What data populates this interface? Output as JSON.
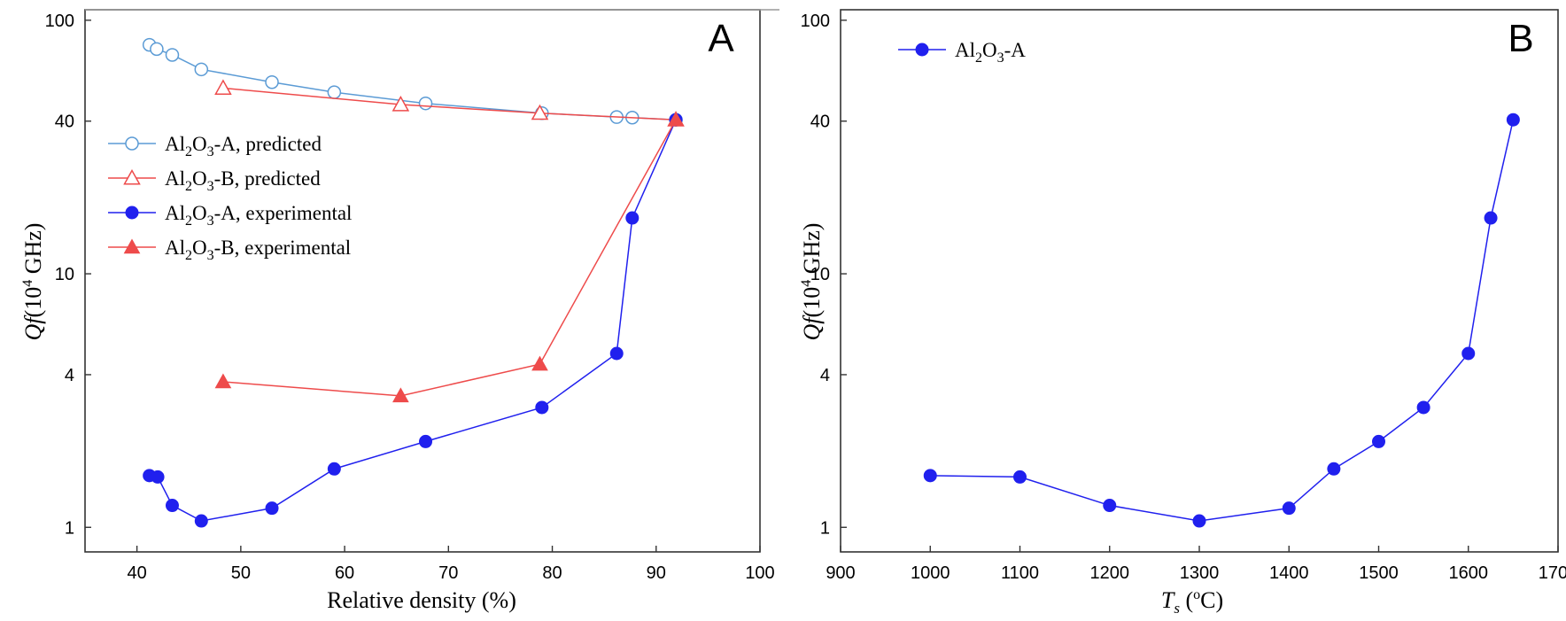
{
  "chart_data": [
    {
      "type": "line",
      "panel_label": "A",
      "xlabel": "Relative density (%)",
      "ylabel_main": "Qf",
      "ylabel_unit": "(10",
      "ylabel_exp": "4",
      "ylabel_tail": " GHz)",
      "y_scale": "log",
      "xlim": [
        35,
        100
      ],
      "ylim": [
        0.8,
        110
      ],
      "x_ticks": [
        "40",
        "50",
        "60",
        "70",
        "80",
        "90",
        "100"
      ],
      "y_ticks": [
        "1",
        "4",
        "10",
        "40",
        "100"
      ],
      "legend_position": "left",
      "series": [
        {
          "name": "Al2O3-A, predicted",
          "label_parts": [
            "Al",
            "2",
            "O",
            "3",
            "-A, predicted"
          ],
          "color": "#5b9bd5",
          "marker": "circle-open",
          "x": [
            41.2,
            41.9,
            43.4,
            46.2,
            53.0,
            59.0,
            67.8,
            79.0,
            86.2,
            87.7,
            91.9
          ],
          "y": [
            80,
            77,
            73,
            64,
            57,
            52,
            47,
            43,
            41.5,
            41.3,
            40.5
          ]
        },
        {
          "name": "Al2O3-B, predicted",
          "label_parts": [
            "Al",
            "2",
            "O",
            "3",
            "-B, predicted"
          ],
          "color": "#ee4b4b",
          "marker": "triangle-open",
          "x": [
            48.3,
            65.4,
            78.8,
            91.9
          ],
          "y": [
            54,
            46.5,
            43,
            40.5
          ]
        },
        {
          "name": "Al2O3-A, experimental",
          "label_parts": [
            "Al",
            "2",
            "O",
            "3",
            "-A, experimental"
          ],
          "color": "#2020ee",
          "marker": "circle-filled",
          "x": [
            41.2,
            42.0,
            43.4,
            46.2,
            53.0,
            59.0,
            67.8,
            79.0,
            86.2,
            87.7,
            91.9
          ],
          "y": [
            1.6,
            1.58,
            1.22,
            1.06,
            1.19,
            1.7,
            2.18,
            2.97,
            4.85,
            16.6,
            40.5
          ]
        },
        {
          "name": "Al2O3-B, experimental",
          "label_parts": [
            "Al",
            "2",
            "O",
            "3",
            "-B, experimental"
          ],
          "color": "#ee4b4b",
          "marker": "triangle-filled",
          "x": [
            48.3,
            65.4,
            78.8,
            91.9
          ],
          "y": [
            3.75,
            3.3,
            4.4,
            40.5
          ]
        }
      ]
    },
    {
      "type": "line",
      "panel_label": "B",
      "xlabel_main": "T",
      "xlabel_sub": "s",
      "xlabel_unit": " (",
      "xlabel_sup": "o",
      "xlabel_tail": "C)",
      "ylabel_main": "Qf",
      "ylabel_unit": "(10",
      "ylabel_exp": "4",
      "ylabel_tail": " GHz)",
      "y_scale": "log",
      "xlim": [
        900,
        1700
      ],
      "ylim": [
        0.8,
        110
      ],
      "x_ticks": [
        "900",
        "1000",
        "1100",
        "1200",
        "1300",
        "1400",
        "1500",
        "1600",
        "1700"
      ],
      "y_ticks": [
        "1",
        "4",
        "10",
        "40",
        "100"
      ],
      "legend_position": "top-left",
      "series": [
        {
          "name": "Al2O3-A",
          "label_parts": [
            "Al",
            "2",
            "O",
            "3",
            "-A"
          ],
          "color": "#2020ee",
          "marker": "circle-filled",
          "x": [
            1000,
            1100,
            1200,
            1300,
            1400,
            1450,
            1500,
            1550,
            1600,
            1625,
            1650
          ],
          "y": [
            1.6,
            1.58,
            1.22,
            1.06,
            1.19,
            1.7,
            2.18,
            2.97,
            4.85,
            16.6,
            40.5
          ]
        }
      ]
    }
  ]
}
